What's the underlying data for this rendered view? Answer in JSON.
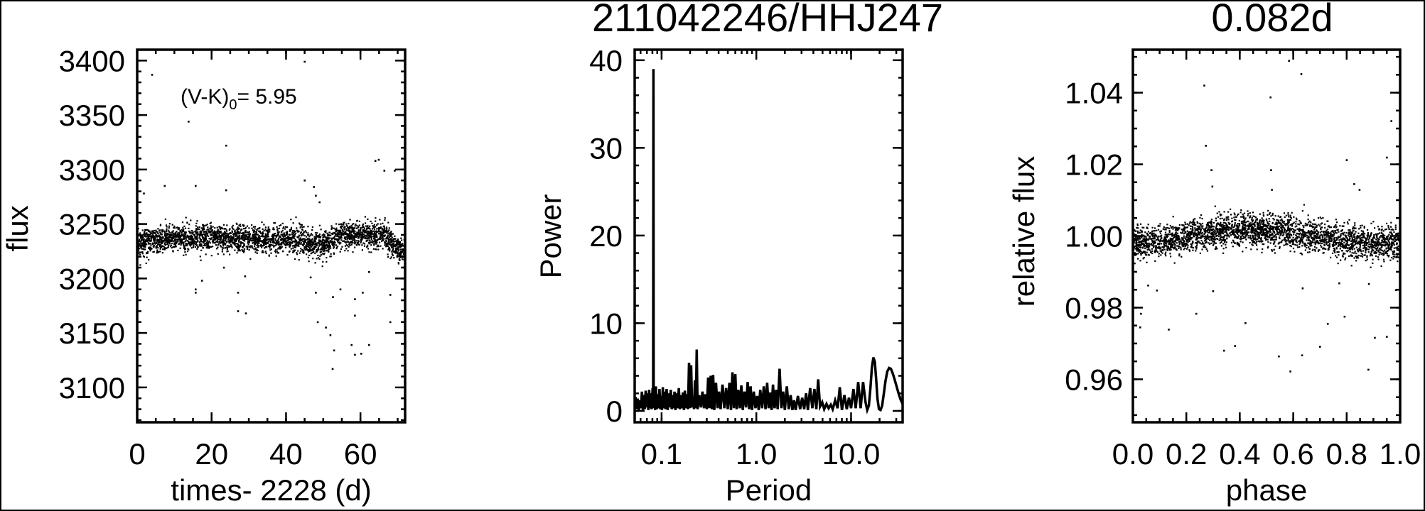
{
  "figure_title": "211042246/HHJ247",
  "chart_data": [
    {
      "type": "scatter",
      "panel": "light-curve",
      "title": "",
      "xlabel": "times- 2228 (d)",
      "ylabel": "flux",
      "xlim": [
        0,
        72
      ],
      "ylim": [
        3068,
        3410
      ],
      "xticks": [
        0,
        20,
        40,
        60
      ],
      "xtick_labels": [
        "0",
        "20",
        "40",
        "60"
      ],
      "yticks": [
        3100,
        3150,
        3200,
        3250,
        3300,
        3350,
        3400
      ],
      "ytick_labels": [
        "3100",
        "3150",
        "3200",
        "3250",
        "3300",
        "3350",
        "3400"
      ],
      "annotation": {
        "main": "(V-K)",
        "sub": "0",
        "rest": "= 5.95"
      },
      "grid": false,
      "color": "#000000",
      "trend": [
        [
          0,
          3233
        ],
        [
          10,
          3237
        ],
        [
          20,
          3237
        ],
        [
          30,
          3236
        ],
        [
          40,
          3236
        ],
        [
          47,
          3233
        ],
        [
          50,
          3231
        ],
        [
          55,
          3240
        ],
        [
          62,
          3240
        ],
        [
          66,
          3240
        ],
        [
          69,
          3231
        ],
        [
          72,
          3222
        ]
      ],
      "scatter_sigma": 6,
      "outliers": [
        [
          4.0,
          3387
        ],
        [
          45,
          3399
        ],
        [
          13.8,
          3344
        ],
        [
          23.9,
          3322
        ],
        [
          64.9,
          3309
        ],
        [
          64.0,
          3308
        ],
        [
          66.4,
          3299
        ],
        [
          69.2,
          3299
        ],
        [
          1.8,
          3278
        ],
        [
          7.4,
          3285
        ],
        [
          15.7,
          3285
        ],
        [
          23.9,
          3281
        ],
        [
          45,
          3290
        ],
        [
          47.5,
          3284
        ],
        [
          48,
          3276
        ],
        [
          49,
          3270
        ],
        [
          23.3,
          3210
        ],
        [
          15.7,
          3190
        ],
        [
          15.7,
          3187
        ],
        [
          17.4,
          3198
        ],
        [
          27.1,
          3187
        ],
        [
          27.1,
          3170
        ],
        [
          29.2,
          3168
        ],
        [
          29,
          3202
        ],
        [
          48.5,
          3160
        ],
        [
          50.7,
          3155
        ],
        [
          51.9,
          3148
        ],
        [
          52.9,
          3134
        ],
        [
          52.5,
          3117
        ],
        [
          57.6,
          3139
        ],
        [
          58.5,
          3130
        ],
        [
          60.2,
          3131
        ],
        [
          62.3,
          3139
        ],
        [
          58.5,
          3166
        ],
        [
          68,
          3160
        ],
        [
          58.5,
          3181
        ],
        [
          60.6,
          3187
        ],
        [
          68,
          3185
        ],
        [
          54.6,
          3190
        ],
        [
          52.6,
          3183
        ],
        [
          48,
          3187
        ],
        [
          46.6,
          3201
        ],
        [
          62.3,
          3206
        ]
      ]
    },
    {
      "type": "line",
      "panel": "periodogram",
      "title": "",
      "xlabel": "Period",
      "ylabel": "Power",
      "xscale": "log",
      "xlim": [
        0.052,
        35
      ],
      "ylim": [
        -1.3,
        41.2
      ],
      "xticks": [
        0.1,
        1.0,
        10.0
      ],
      "xtick_labels": [
        "0.1",
        "1.0",
        "10.0"
      ],
      "yticks": [
        0,
        10,
        20,
        30,
        40
      ],
      "ytick_labels": [
        "0",
        "10",
        "20",
        "30",
        "40"
      ],
      "grid": false,
      "color": "#000000",
      "points": [
        [
          0.053,
          1.6
        ],
        [
          0.0545,
          0.2
        ],
        [
          0.056,
          1.4
        ],
        [
          0.0575,
          0.1
        ],
        [
          0.059,
          1.2
        ],
        [
          0.0605,
          0.3
        ],
        [
          0.062,
          2.2
        ],
        [
          0.0635,
          0.1
        ],
        [
          0.065,
          1.8
        ],
        [
          0.0665,
          0.2
        ],
        [
          0.068,
          2.3
        ],
        [
          0.0695,
          0.4
        ],
        [
          0.071,
          2.0
        ],
        [
          0.0725,
          0.1
        ],
        [
          0.074,
          2.4
        ],
        [
          0.0755,
          0.3
        ],
        [
          0.077,
          2.0
        ],
        [
          0.0785,
          0.2
        ],
        [
          0.0805,
          2.6
        ],
        [
          0.0815,
          0.3
        ],
        [
          0.082,
          39.0
        ],
        [
          0.0825,
          0.3
        ],
        [
          0.084,
          2.2
        ],
        [
          0.0855,
          0.1
        ],
        [
          0.087,
          2.8
        ],
        [
          0.089,
          0.2
        ],
        [
          0.091,
          1.9
        ],
        [
          0.093,
          0.3
        ],
        [
          0.095,
          2.5
        ],
        [
          0.097,
          0.2
        ],
        [
          0.099,
          1.7
        ],
        [
          0.101,
          0.1
        ],
        [
          0.103,
          2.7
        ],
        [
          0.105,
          0.3
        ],
        [
          0.108,
          2.2
        ],
        [
          0.11,
          0.2
        ],
        [
          0.113,
          2.5
        ],
        [
          0.116,
          0.1
        ],
        [
          0.119,
          2.0
        ],
        [
          0.122,
          0.4
        ],
        [
          0.125,
          2.4
        ],
        [
          0.128,
          0.2
        ],
        [
          0.131,
          1.8
        ],
        [
          0.134,
          0.3
        ],
        [
          0.137,
          2.2
        ],
        [
          0.14,
          0.1
        ],
        [
          0.144,
          2.0
        ],
        [
          0.148,
          0.3
        ],
        [
          0.152,
          2.6
        ],
        [
          0.156,
          0.2
        ],
        [
          0.16,
          1.8
        ],
        [
          0.164,
          0.3
        ],
        [
          0.168,
          2.1
        ],
        [
          0.172,
          0.1
        ],
        [
          0.176,
          2.3
        ],
        [
          0.18,
          0.3
        ],
        [
          0.185,
          1.9
        ],
        [
          0.19,
          0.2
        ],
        [
          0.195,
          5.5
        ],
        [
          0.2,
          0.3
        ],
        [
          0.205,
          5.2
        ],
        [
          0.21,
          0.4
        ],
        [
          0.215,
          1.6
        ],
        [
          0.22,
          0.2
        ],
        [
          0.225,
          3.5
        ],
        [
          0.23,
          0.3
        ],
        [
          0.235,
          7.0
        ],
        [
          0.24,
          0.2
        ],
        [
          0.25,
          1.8
        ],
        [
          0.26,
          0.4
        ],
        [
          0.27,
          2.2
        ],
        [
          0.28,
          0.3
        ],
        [
          0.29,
          1.9
        ],
        [
          0.3,
          0.2
        ],
        [
          0.31,
          3.8
        ],
        [
          0.32,
          0.3
        ],
        [
          0.33,
          4.0
        ],
        [
          0.34,
          0.2
        ],
        [
          0.35,
          4.1
        ],
        [
          0.36,
          0.1
        ],
        [
          0.375,
          3.2
        ],
        [
          0.39,
          0.3
        ],
        [
          0.405,
          2.2
        ],
        [
          0.42,
          0.2
        ],
        [
          0.44,
          3.0
        ],
        [
          0.46,
          0.3
        ],
        [
          0.48,
          2.6
        ],
        [
          0.5,
          0.2
        ],
        [
          0.52,
          3.2
        ],
        [
          0.54,
          0.1
        ],
        [
          0.56,
          4.4
        ],
        [
          0.58,
          0.3
        ],
        [
          0.6,
          4.2
        ],
        [
          0.62,
          0.2
        ],
        [
          0.645,
          2.4
        ],
        [
          0.67,
          0.3
        ],
        [
          0.695,
          2.9
        ],
        [
          0.72,
          0.1
        ],
        [
          0.75,
          2.2
        ],
        [
          0.78,
          0.4
        ],
        [
          0.81,
          3.3
        ],
        [
          0.84,
          0.2
        ],
        [
          0.87,
          2.8
        ],
        [
          0.9,
          0.1
        ],
        [
          0.94,
          2.2
        ],
        [
          0.98,
          0.3
        ],
        [
          1.02,
          1.7
        ],
        [
          1.06,
          0.1
        ],
        [
          1.1,
          2.4
        ],
        [
          1.15,
          0.3
        ],
        [
          1.2,
          2.8
        ],
        [
          1.25,
          0.2
        ],
        [
          1.3,
          3.2
        ],
        [
          1.35,
          0.3
        ],
        [
          1.4,
          2.1
        ],
        [
          1.45,
          0.1
        ],
        [
          1.5,
          3.0
        ],
        [
          1.56,
          0.3
        ],
        [
          1.62,
          2.4
        ],
        [
          1.68,
          0.2
        ],
        [
          1.76,
          4.8
        ],
        [
          1.84,
          0.3
        ],
        [
          1.92,
          2.2
        ],
        [
          2.0,
          0.1
        ],
        [
          2.1,
          2.8
        ],
        [
          2.2,
          0.2
        ],
        [
          2.3,
          1.8
        ],
        [
          2.4,
          0.1
        ],
        [
          2.5,
          1.2
        ],
        [
          2.6,
          0.1
        ],
        [
          2.75,
          1.7
        ],
        [
          2.9,
          0.2
        ],
        [
          3.05,
          1.5
        ],
        [
          3.2,
          0.2
        ],
        [
          3.35,
          2.0
        ],
        [
          3.5,
          0.1
        ],
        [
          3.7,
          2.6
        ],
        [
          3.9,
          0.3
        ],
        [
          4.1,
          2.5
        ],
        [
          4.3,
          0.2
        ],
        [
          4.5,
          3.6
        ],
        [
          4.7,
          0.5
        ],
        [
          4.95,
          1.0
        ],
        [
          5.2,
          0.2
        ],
        [
          5.5,
          0.8
        ],
        [
          5.8,
          0.3
        ],
        [
          6.1,
          0.7
        ],
        [
          6.4,
          0.2
        ],
        [
          6.8,
          1.2
        ],
        [
          7.2,
          0.3
        ],
        [
          7.6,
          2.7
        ],
        [
          8.0,
          0.1
        ],
        [
          8.5,
          1.8
        ],
        [
          9.0,
          0.2
        ],
        [
          9.5,
          1.5
        ],
        [
          10.0,
          0.3
        ],
        [
          10.6,
          2.5
        ],
        [
          11.2,
          0.3
        ],
        [
          11.9,
          3.3
        ],
        [
          12.6,
          0.3
        ],
        [
          13.4,
          3.3
        ],
        [
          14.2,
          1.0
        ],
        [
          14.8,
          0.1
        ],
        [
          15.4,
          0.6
        ],
        [
          16.0,
          2.6
        ],
        [
          16.6,
          5.0
        ],
        [
          17.2,
          6.1
        ],
        [
          17.8,
          5.6
        ],
        [
          18.4,
          3.6
        ],
        [
          19.0,
          1.4
        ],
        [
          19.7,
          0.2
        ],
        [
          20.5,
          0.1
        ],
        [
          21.3,
          0.6
        ],
        [
          22.2,
          2.0
        ],
        [
          23.1,
          3.4
        ],
        [
          24.1,
          4.5
        ],
        [
          25.2,
          4.9
        ],
        [
          26.3,
          4.8
        ],
        [
          27.5,
          4.3
        ],
        [
          28.8,
          3.6
        ],
        [
          30.2,
          2.8
        ],
        [
          31.7,
          2.0
        ],
        [
          33.3,
          1.3
        ],
        [
          35.0,
          0.8
        ]
      ]
    },
    {
      "type": "scatter",
      "panel": "phased-light-curve",
      "title": "0.082d",
      "xlabel": "phase",
      "ylabel": "relative flux",
      "xlim": [
        0.0,
        1.0
      ],
      "ylim": [
        0.948,
        1.052
      ],
      "xticks": [
        0.0,
        0.2,
        0.4,
        0.6,
        0.8,
        1.0
      ],
      "xtick_labels": [
        "0.0",
        "0.2",
        "0.4",
        "0.6",
        "0.8",
        "1.0"
      ],
      "yticks": [
        0.96,
        0.98,
        1.0,
        1.02,
        1.04
      ],
      "ytick_labels": [
        "0.96",
        "0.98",
        "1.00",
        "1.02",
        "1.04"
      ],
      "grid": false,
      "color": "#000000",
      "trend": [
        [
          0,
          0.998
        ],
        [
          0.1,
          0.9985
        ],
        [
          0.2,
          1.0
        ],
        [
          0.3,
          1.001
        ],
        [
          0.4,
          1.0015
        ],
        [
          0.5,
          1.0015
        ],
        [
          0.6,
          1.001
        ],
        [
          0.7,
          0.9995
        ],
        [
          0.8,
          0.9985
        ],
        [
          0.9,
          0.998
        ],
        [
          1.0,
          0.998
        ]
      ],
      "scatter_sigma": 0.0022,
      "outliers": [
        [
          0.584,
          1.0489
        ],
        [
          0.63,
          1.0452
        ],
        [
          0.267,
          1.042
        ],
        [
          0.515,
          1.0387
        ],
        [
          0.273,
          1.0252
        ],
        [
          0.967,
          1.0321
        ],
        [
          0.95,
          1.0219
        ],
        [
          0.8,
          1.0212
        ],
        [
          0.517,
          1.0184
        ],
        [
          0.294,
          1.0184
        ],
        [
          0.297,
          1.0138
        ],
        [
          0.828,
          1.0145
        ],
        [
          0.848,
          1.0129
        ],
        [
          0.52,
          1.0129
        ],
        [
          0.03,
          0.9783
        ],
        [
          0.027,
          0.9745
        ],
        [
          0.134,
          0.9739
        ],
        [
          0.237,
          0.9783
        ],
        [
          0.341,
          0.968
        ],
        [
          0.382,
          0.9693
        ],
        [
          0.421,
          0.9757
        ],
        [
          0.546,
          0.9664
        ],
        [
          0.589,
          0.9622
        ],
        [
          0.633,
          0.9667
        ],
        [
          0.7,
          0.9691
        ],
        [
          0.729,
          0.9755
        ],
        [
          0.792,
          0.9775
        ],
        [
          0.905,
          0.9716
        ],
        [
          0.95,
          0.9719
        ],
        [
          0.881,
          0.9627
        ],
        [
          0.09,
          0.9848
        ],
        [
          0.057,
          0.9862
        ],
        [
          0.3,
          0.9846
        ],
        [
          0.635,
          0.9854
        ],
        [
          0.772,
          0.9868
        ],
        [
          0.883,
          0.9866
        ],
        [
          0.984,
          0.9849
        ]
      ]
    }
  ]
}
